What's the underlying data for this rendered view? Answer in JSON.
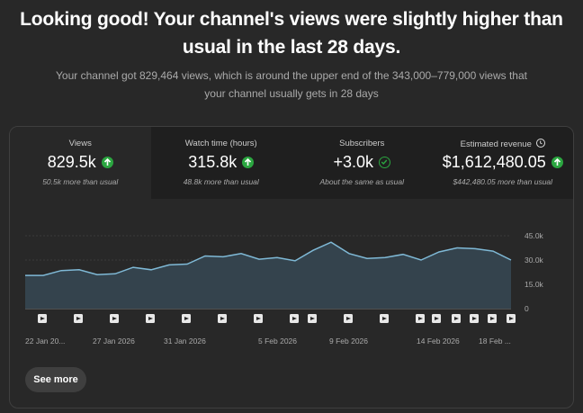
{
  "headline": "Looking good! Your channel's views were slightly higher than usual in the last 28 days.",
  "subtext": "Your channel got 829,464 views, which is around the upper end of the 343,000–779,000 views that your channel usually gets in 28 days",
  "metrics": [
    {
      "label": "Views",
      "value": "829.5k",
      "note": "50.5k more than usual",
      "status_icon": "up-arrow-icon"
    },
    {
      "label": "Watch time (hours)",
      "value": "315.8k",
      "note": "48.8k more than usual",
      "status_icon": "up-arrow-icon"
    },
    {
      "label": "Subscribers",
      "value": "+3.0k",
      "note": "About the same as usual",
      "status_icon": "check-circle-icon"
    },
    {
      "label": "Estimated revenue",
      "value": "$1,612,480.05",
      "note": "$442,480.05 more than usual",
      "status_icon": "up-arrow-icon",
      "extra_icon": "clock-icon"
    }
  ],
  "colors": {
    "accent_green": "#2ba640",
    "line": "#7fb9d6",
    "area": "#34434d"
  },
  "chart_data": {
    "type": "area",
    "series": [
      {
        "values": [
          20500,
          20500,
          23500,
          24000,
          21000,
          21500,
          25500,
          24000,
          27000,
          27500,
          32500,
          32000,
          34000,
          30500,
          31500,
          29500,
          36000,
          41000,
          34000,
          31000,
          31500,
          33500,
          30000,
          35000,
          37500,
          37000,
          35500,
          30000
        ]
      }
    ],
    "y_ticks": [
      "45.0k",
      "30.0k",
      "15.0k",
      "0"
    ],
    "ylim": [
      0,
      45000
    ],
    "x_tick_labels": [
      "22 Jan 20...",
      "27 Jan 2026",
      "31 Jan 2026",
      "5 Feb 2026",
      "9 Feb 2026",
      "14 Feb 2026",
      "18 Feb ..."
    ],
    "grid": true
  },
  "see_more_label": "See more"
}
